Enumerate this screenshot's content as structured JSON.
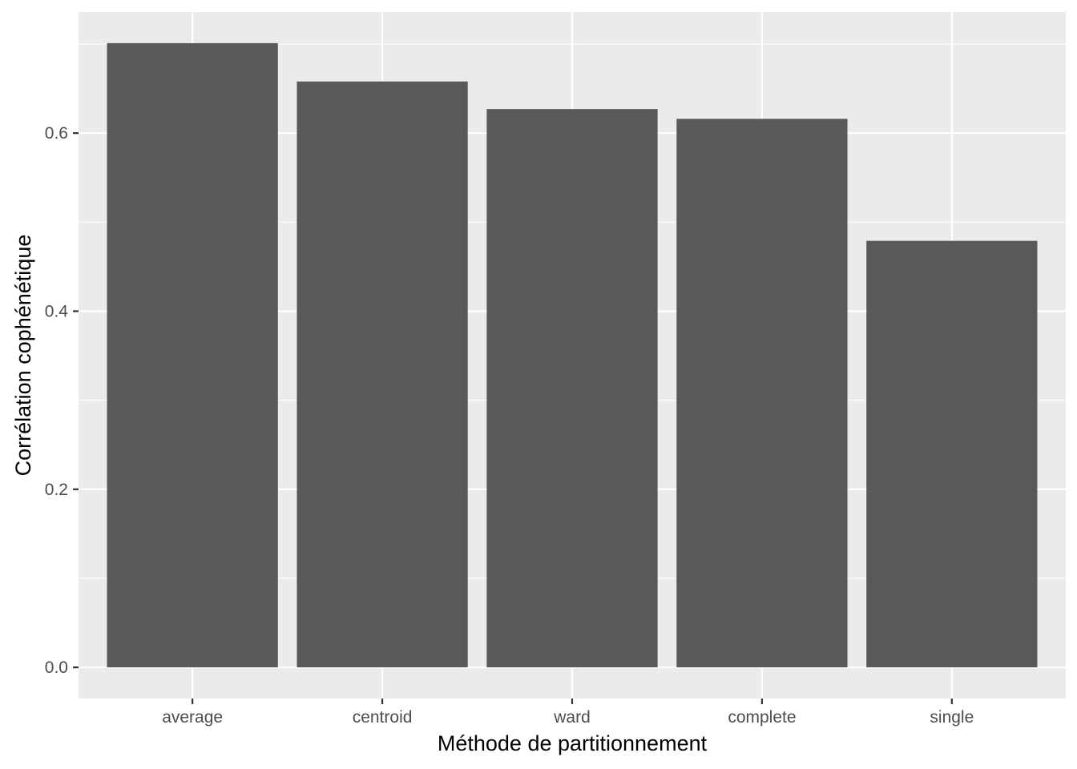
{
  "chart_data": {
    "type": "bar",
    "title": "",
    "xlabel": "Méthode de partitionnement",
    "ylabel": "Corrélation cophénétique",
    "categories": [
      "average",
      "centroid",
      "ward",
      "complete",
      "single"
    ],
    "values": [
      0.701,
      0.658,
      0.627,
      0.616,
      0.479
    ],
    "ylim": [
      -0.035,
      0.736
    ],
    "yticks": [
      0.0,
      0.2,
      0.4,
      0.6
    ],
    "ytick_labels": [
      "0.0",
      "0.2",
      "0.4",
      "0.6"
    ],
    "grid": true,
    "legend": "none",
    "colors": {
      "bar": "#595959",
      "panel": "#ebebeb",
      "grid": "#ffffff",
      "tick": "#333333",
      "tick_label": "#4d4d4d"
    }
  }
}
